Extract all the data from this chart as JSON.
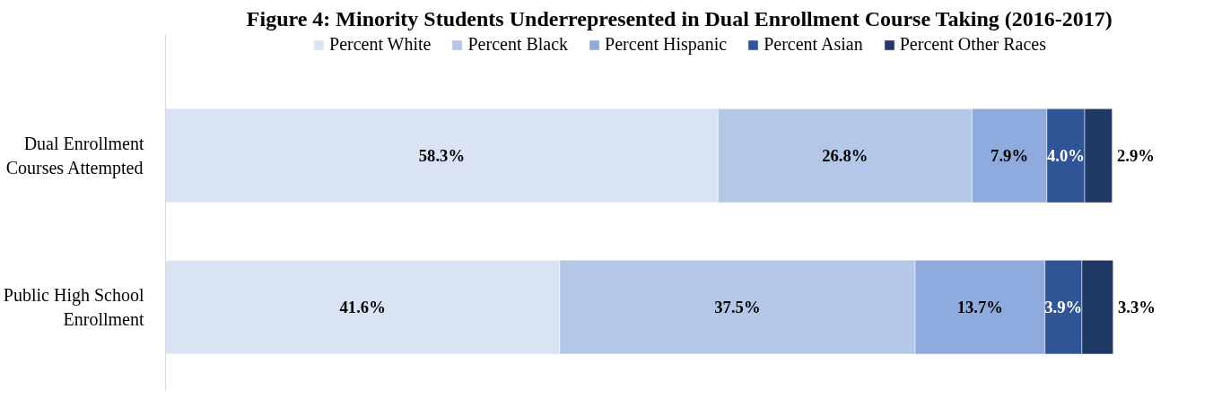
{
  "chart_data": {
    "type": "bar",
    "orientation": "horizontal",
    "stacked": true,
    "title": "Figure 4: Minority Students Underrepresented in Dual Enrollment Course Taking (2016-2017)",
    "categories": [
      "Dual Enrollment Courses Attempted",
      "Public High School Enrollment"
    ],
    "series": [
      {
        "name": "Percent White",
        "color": "#dae3f3",
        "values": [
          58.3,
          41.6
        ],
        "value_labels": [
          "58.3%",
          "41.6%"
        ]
      },
      {
        "name": "Percent Black",
        "color": "#b4c7e7",
        "values": [
          26.8,
          37.5
        ],
        "value_labels": [
          "26.8%",
          "37.5%"
        ]
      },
      {
        "name": "Percent Hispanic",
        "color": "#8faadc",
        "values": [
          7.9,
          13.7
        ],
        "value_labels": [
          "7.9%",
          "13.7%"
        ]
      },
      {
        "name": "Percent Asian",
        "color": "#2f5597",
        "values": [
          4.0,
          3.9
        ],
        "value_labels": [
          "4.0%",
          "3.9%"
        ]
      },
      {
        "name": "Percent Other Races",
        "color": "#203864",
        "values": [
          2.9,
          3.3
        ],
        "value_labels": [
          "2.9%",
          "3.3%"
        ]
      }
    ],
    "legend": "top",
    "tick_labels": "y"
  }
}
